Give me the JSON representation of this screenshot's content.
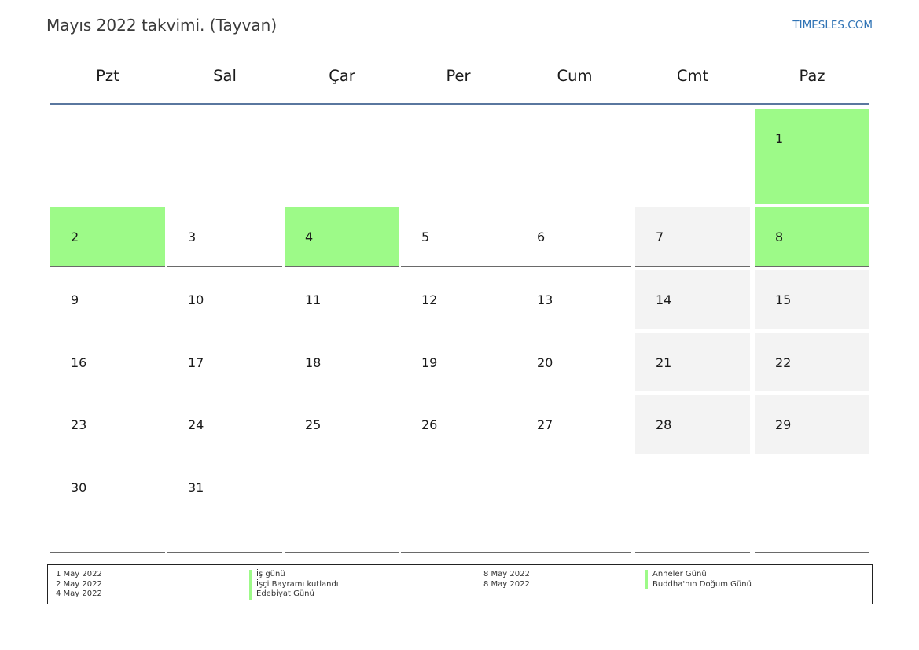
{
  "title": "Mayıs 2022 takvimi. (Tayvan)",
  "brand": "TIMESLES.COM",
  "colors": {
    "holiday": "#9dfa88",
    "weekend": "#f3f3f3",
    "header_rule": "#5a779f",
    "brand": "#2f73b5"
  },
  "weekdays": [
    "Pzt",
    "Sal",
    "Çar",
    "Per",
    "Cum",
    "Cmt",
    "Paz"
  ],
  "weeks": [
    [
      null,
      null,
      null,
      null,
      null,
      null,
      {
        "day": "1",
        "holiday": true
      }
    ],
    [
      {
        "day": "2",
        "holiday": true
      },
      {
        "day": "3"
      },
      {
        "day": "4",
        "holiday": true
      },
      {
        "day": "5"
      },
      {
        "day": "6"
      },
      {
        "day": "7"
      },
      {
        "day": "8",
        "holiday": true
      }
    ],
    [
      {
        "day": "9"
      },
      {
        "day": "10"
      },
      {
        "day": "11"
      },
      {
        "day": "12"
      },
      {
        "day": "13"
      },
      {
        "day": "14"
      },
      {
        "day": "15"
      }
    ],
    [
      {
        "day": "16"
      },
      {
        "day": "17"
      },
      {
        "day": "18"
      },
      {
        "day": "19"
      },
      {
        "day": "20"
      },
      {
        "day": "21"
      },
      {
        "day": "22"
      }
    ],
    [
      {
        "day": "23"
      },
      {
        "day": "24"
      },
      {
        "day": "25"
      },
      {
        "day": "26"
      },
      {
        "day": "27"
      },
      {
        "day": "28"
      },
      {
        "day": "29"
      }
    ],
    [
      {
        "day": "30"
      },
      {
        "day": "31"
      },
      null,
      null,
      null,
      null,
      null
    ]
  ],
  "legend": {
    "left": [
      {
        "date": "1 May 2022",
        "name": "İş günü"
      },
      {
        "date": "2 May 2022",
        "name": "İşçi Bayramı kutlandı"
      },
      {
        "date": "4 May 2022",
        "name": "Edebiyat Günü"
      }
    ],
    "right": [
      {
        "date": "8 May 2022",
        "name": "Anneler Günü"
      },
      {
        "date": "8 May 2022",
        "name": "Buddha'nın Doğum Günü"
      }
    ]
  }
}
